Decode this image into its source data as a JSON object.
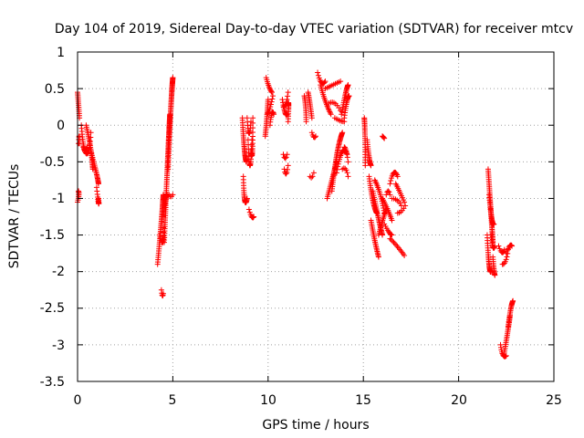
{
  "chart_data": {
    "type": "scatter",
    "title": "Day 104 of 2019, Sidereal Day-to-day VTEC variation (SDTVAR) for receiver mtcv",
    "xlabel": "GPS time / hours",
    "ylabel": "SDTVAR / TECUs",
    "xlim": [
      0,
      25
    ],
    "ylim": [
      -3.5,
      1
    ],
    "xticks": [
      "0",
      "5",
      "10",
      "15",
      "20",
      "25"
    ],
    "yticks": [
      "1",
      "0.5",
      "0",
      "-0.5",
      "-1",
      "-1.5",
      "-2",
      "-2.5",
      "-3",
      "-3.5"
    ],
    "grid": true,
    "series": [
      {
        "name": "SDTVAR",
        "color": "#ff0000",
        "marker": "plus",
        "segments": [
          [
            0.0,
            0.45,
            0.05,
            0.3,
            0.1,
            0.1
          ],
          [
            0.05,
            -0.25,
            0.1,
            -0.05,
            0.1,
            -0.25
          ],
          [
            0.0,
            -1.05,
            0.1,
            -0.95,
            0.05,
            -0.9
          ],
          [
            0.2,
            0.0,
            0.35,
            -0.5,
            0.5,
            -0.3
          ],
          [
            0.3,
            -0.3,
            0.6,
            -0.55,
            0.7,
            -0.1
          ],
          [
            0.45,
            0.0,
            0.75,
            -0.35,
            0.8,
            -0.6
          ],
          [
            0.7,
            -0.35,
            1.05,
            -0.7,
            1.1,
            -0.8
          ],
          [
            1.0,
            -0.85,
            1.15,
            -1.2,
            1.1,
            -1.0
          ],
          [
            4.2,
            -1.9,
            4.45,
            -1.2,
            4.5,
            -0.95
          ],
          [
            4.3,
            -1.5,
            4.55,
            -1.75,
            4.5,
            -1.4
          ],
          [
            4.4,
            -2.25,
            4.45,
            -2.38,
            4.5,
            -2.3
          ],
          [
            4.5,
            -1.25,
            4.6,
            -1.0,
            4.7,
            -0.95
          ],
          [
            4.55,
            -1.6,
            4.75,
            -0.3,
            4.85,
            0.15
          ],
          [
            4.75,
            -0.6,
            4.9,
            0.35,
            5.0,
            0.65
          ],
          [
            4.8,
            -0.95,
            4.9,
            -1.0,
            5.0,
            -0.95
          ],
          [
            8.65,
            0.1,
            8.75,
            -0.4,
            8.85,
            -0.5
          ],
          [
            8.7,
            -0.7,
            8.75,
            -1.2,
            8.9,
            -1.0
          ],
          [
            8.9,
            0.1,
            9.0,
            -0.3,
            9.1,
            0.05
          ],
          [
            8.95,
            -0.2,
            9.05,
            -0.9,
            9.15,
            -0.2
          ],
          [
            9.0,
            -1.15,
            9.15,
            -1.3,
            9.25,
            -1.25
          ],
          [
            9.1,
            -0.35,
            9.2,
            -0.6,
            9.2,
            0.1
          ],
          [
            9.85,
            -0.15,
            9.95,
            0.1,
            10.0,
            0.35
          ],
          [
            9.9,
            0.65,
            10.05,
            0.5,
            10.2,
            0.45
          ],
          [
            9.95,
            0.15,
            10.1,
            0.2,
            10.25,
            0.4
          ],
          [
            10.1,
            0.0,
            10.2,
            0.25,
            10.3,
            0.15
          ],
          [
            10.75,
            0.35,
            10.9,
            0.1,
            11.0,
            0.15
          ],
          [
            10.8,
            0.25,
            10.95,
            0.25,
            11.05,
            0.45
          ],
          [
            10.8,
            -0.4,
            10.9,
            -0.5,
            11.0,
            -0.4
          ],
          [
            10.85,
            -0.6,
            10.95,
            -0.75,
            11.05,
            -0.55
          ],
          [
            11.05,
            0.05,
            11.1,
            0.35,
            11.05,
            0.3
          ],
          [
            11.9,
            0.4,
            12.0,
            0.25,
            12.0,
            0.05
          ],
          [
            12.1,
            0.45,
            12.2,
            0.3,
            12.3,
            0.1
          ],
          [
            12.2,
            -0.7,
            12.3,
            -0.75,
            12.4,
            -0.65
          ],
          [
            12.3,
            -0.1,
            12.4,
            -0.2,
            12.5,
            -0.15
          ],
          [
            12.6,
            0.72,
            12.8,
            0.5,
            13.0,
            0.6
          ],
          [
            12.75,
            0.55,
            13.0,
            0.3,
            13.3,
            0.15
          ],
          [
            13.0,
            0.5,
            13.4,
            0.55,
            13.8,
            0.6
          ],
          [
            13.2,
            0.3,
            13.5,
            0.35,
            13.8,
            0.2
          ],
          [
            13.5,
            0.1,
            13.8,
            0.05,
            14.0,
            0.05
          ],
          [
            13.85,
            0.15,
            14.1,
            0.5,
            14.2,
            0.55
          ],
          [
            14.0,
            0.1,
            14.15,
            0.4,
            14.25,
            0.4
          ],
          [
            13.1,
            -1.0,
            13.4,
            -0.7,
            13.6,
            -0.5
          ],
          [
            13.35,
            -0.9,
            13.6,
            -0.3,
            13.9,
            -0.1
          ],
          [
            13.6,
            -0.65,
            13.9,
            -0.2,
            14.15,
            -0.4
          ],
          [
            13.9,
            -0.6,
            14.1,
            -0.55,
            14.2,
            -0.7
          ],
          [
            14.0,
            -0.3,
            14.1,
            -0.3,
            14.2,
            -0.5
          ],
          [
            15.05,
            0.1,
            15.1,
            -0.1,
            15.1,
            -0.55
          ],
          [
            15.2,
            -0.2,
            15.3,
            -0.5,
            15.4,
            -0.55
          ],
          [
            15.3,
            -0.7,
            15.5,
            -1.1,
            15.7,
            -1.2
          ],
          [
            15.4,
            -1.3,
            15.6,
            -1.6,
            15.8,
            -1.8
          ],
          [
            15.5,
            -0.9,
            15.8,
            -1.3,
            16.0,
            -1.5
          ],
          [
            15.6,
            -0.75,
            15.9,
            -0.9,
            16.1,
            -1.2
          ],
          [
            15.8,
            -1.5,
            16.0,
            -1.3,
            16.2,
            -1.15
          ],
          [
            16.0,
            -1.0,
            16.3,
            -1.15,
            16.5,
            -1.3
          ],
          [
            16.1,
            -1.35,
            16.4,
            -1.5,
            16.5,
            -1.5
          ],
          [
            16.2,
            -0.95,
            16.3,
            -0.85,
            16.4,
            -0.95
          ],
          [
            16.4,
            -0.8,
            16.6,
            -0.55,
            16.8,
            -0.7
          ],
          [
            16.5,
            -1.0,
            16.8,
            -1.0,
            17.0,
            -1.1
          ],
          [
            16.7,
            -0.8,
            16.9,
            -0.9,
            17.15,
            -1.05
          ],
          [
            16.4,
            -1.55,
            16.8,
            -1.65,
            17.15,
            -1.78
          ],
          [
            16.8,
            -1.2,
            17.0,
            -1.2,
            17.2,
            -1.1
          ],
          [
            16.0,
            -0.15,
            16.05,
            -0.16,
            16.1,
            -0.18
          ],
          [
            21.5,
            -1.5,
            21.6,
            -2.05,
            21.7,
            -2.0
          ],
          [
            21.55,
            -0.6,
            21.7,
            -1.2,
            21.8,
            -1.6
          ],
          [
            21.6,
            -0.95,
            21.75,
            -1.4,
            21.85,
            -1.35
          ],
          [
            21.7,
            -1.5,
            21.8,
            -1.75,
            21.9,
            -1.65
          ],
          [
            21.8,
            -1.8,
            21.85,
            -2.0,
            21.9,
            -2.05
          ],
          [
            22.1,
            -1.65,
            22.3,
            -1.8,
            22.4,
            -1.7
          ],
          [
            22.3,
            -1.9,
            22.5,
            -1.9,
            22.6,
            -1.7
          ],
          [
            22.5,
            -1.75,
            22.7,
            -1.6,
            22.8,
            -1.65
          ],
          [
            22.2,
            -3.0,
            22.3,
            -3.2,
            22.5,
            -3.15
          ],
          [
            22.4,
            -3.1,
            22.6,
            -2.8,
            22.7,
            -2.6
          ],
          [
            22.6,
            -2.75,
            22.75,
            -2.45,
            22.85,
            -2.4
          ]
        ]
      }
    ]
  }
}
